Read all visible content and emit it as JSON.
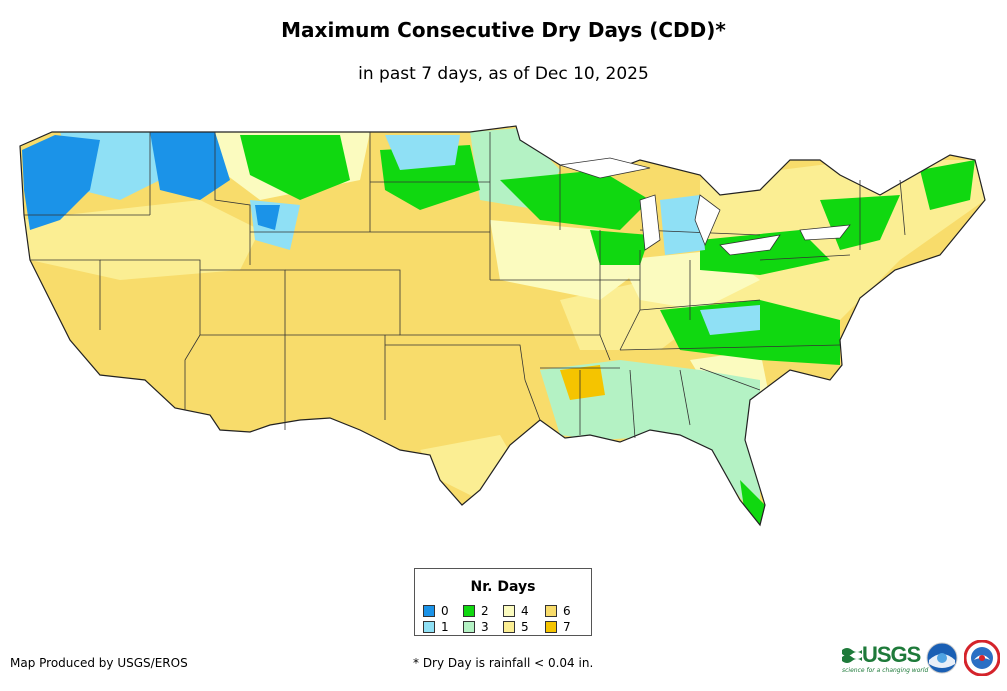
{
  "title": "Maximum Consecutive Dry Days (CDD)*",
  "subtitle": "in past 7 days, as of Dec 10, 2025",
  "legend": {
    "title": "Nr. Days",
    "items": [
      {
        "label": "0",
        "color": "#1b93e8"
      },
      {
        "label": "1",
        "color": "#8fe0f5"
      },
      {
        "label": "2",
        "color": "#10d810"
      },
      {
        "label": "3",
        "color": "#b4f2c4"
      },
      {
        "label": "4",
        "color": "#fbfbbf"
      },
      {
        "label": "5",
        "color": "#fbee93"
      },
      {
        "label": "6",
        "color": "#f8dc6b"
      },
      {
        "label": "7",
        "color": "#f5c400"
      }
    ]
  },
  "credit": "Map Produced by USGS/EROS",
  "footnote": "* Dry Day is rainfall < 0.04 in.",
  "logos": {
    "usgs": "USGS",
    "usgs_tagline": "science for a changing world"
  }
}
